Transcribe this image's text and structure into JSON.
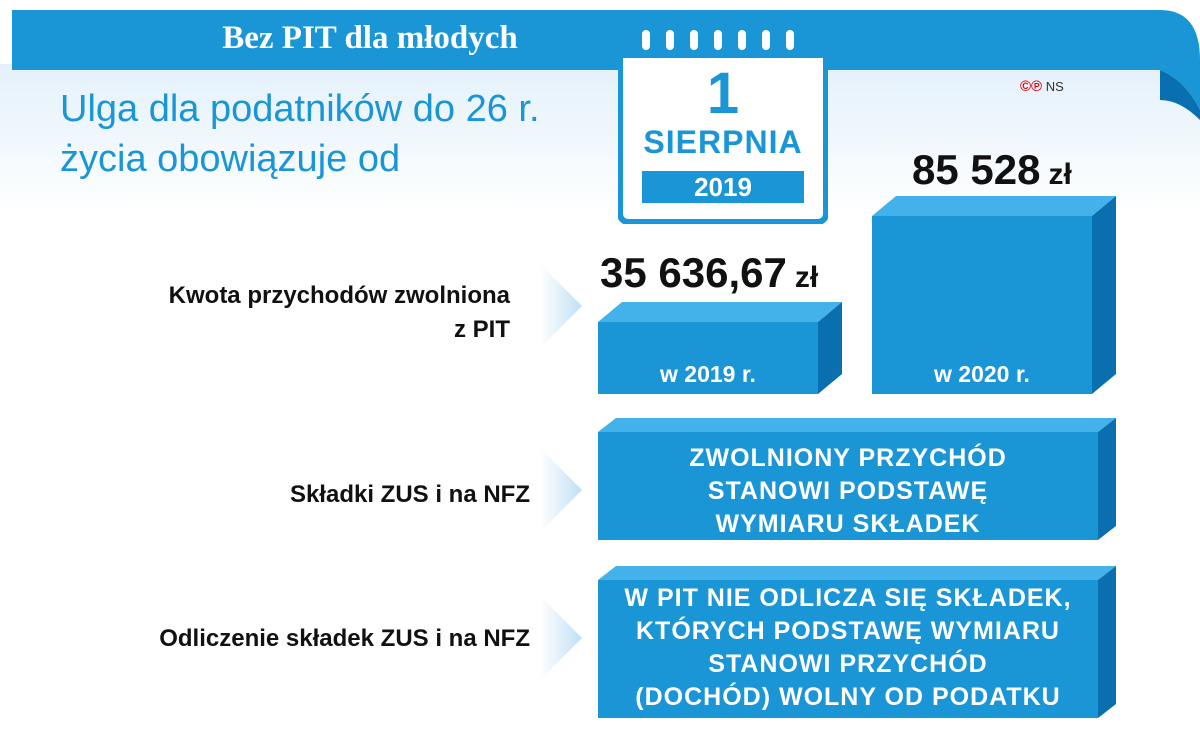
{
  "header": {
    "title": "Bez PIT dla młodych"
  },
  "subtitle": {
    "line1": "Ulga dla podatników do 26 r.",
    "line2": "życia obowiązuje od"
  },
  "calendar": {
    "day": "1",
    "month": "SIERPNIA",
    "year": "2019"
  },
  "credit": {
    "symbols": "©℗",
    "initials": "NS"
  },
  "rows": {
    "income_label_line1": "Kwota przychodów zwolniona",
    "income_label_line2": "z PIT",
    "zus_label": "Składki ZUS i na NFZ",
    "deduction_label": "Odliczenie składek ZUS i na NFZ"
  },
  "bars": [
    {
      "year_label": "w 2019 r.",
      "amount": "35 636,67",
      "unit": "zł"
    },
    {
      "year_label": "w 2020 r.",
      "amount": "85 528",
      "unit": "zł"
    }
  ],
  "boxes": {
    "zus_text": [
      "ZWOLNIONY PRZYCHÓD",
      "STANOWI PODSTAWĘ",
      "WYMIARU SKŁADEK"
    ],
    "deduction_text": [
      "W PIT NIE ODLICZA SIĘ SKŁADEK,",
      "KTÓRYCH PODSTAWĘ WYMIARU",
      "STANOWI PRZYCHÓD",
      "(DOCHÓD) WOLNY OD PODATKU"
    ]
  },
  "colors": {
    "accent": "#1a95d6",
    "dark_accent": "#0a6fae",
    "light_band": "#e4f1fb"
  }
}
